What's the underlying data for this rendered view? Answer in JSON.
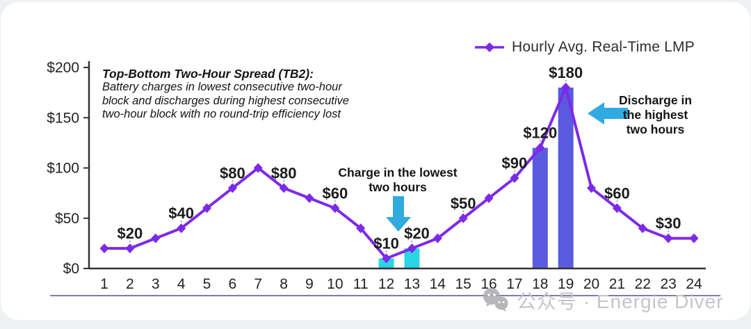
{
  "legend": {
    "label": "Hourly Avg. Real-Time LMP"
  },
  "annotation": {
    "title": "Top-Bottom Two-Hour Spread (TB2):",
    "lines": [
      "Battery charges in lowest consecutive two-hour",
      "block and discharges during highest consecutive",
      "two-hour block with no round-trip efficiency lost"
    ]
  },
  "callouts": {
    "charge": {
      "lines": [
        "Charge in the lowest",
        "two hours"
      ]
    },
    "discharge": {
      "lines": [
        "Discharge in",
        "the highest",
        "two hours"
      ]
    }
  },
  "watermark": {
    "icon": "wechat-icon",
    "text": "公众号 · Energie Diver"
  },
  "colors": {
    "line": "#7d2ae8",
    "charge_bar": "#2bd6e4",
    "discharge_bar": "#5a5adf",
    "arrow": "#30aae0",
    "axis": "#333333",
    "leader": "#8d8d8d"
  },
  "chart_data": {
    "type": "line",
    "title": "",
    "xlabel": "",
    "ylabel": "",
    "grid": false,
    "legend_position": "top-right",
    "series_name": "Hourly Avg. Real-Time LMP",
    "x": [
      1,
      2,
      3,
      4,
      5,
      6,
      7,
      8,
      9,
      10,
      11,
      12,
      13,
      14,
      15,
      16,
      17,
      18,
      19,
      20,
      21,
      22,
      23,
      24
    ],
    "values": [
      20,
      20,
      30,
      40,
      60,
      80,
      100,
      80,
      70,
      60,
      40,
      10,
      20,
      30,
      50,
      70,
      90,
      120,
      180,
      80,
      60,
      40,
      30,
      30
    ],
    "ylim": [
      0,
      200
    ],
    "yticks": [
      {
        "value": 0,
        "label": "$0"
      },
      {
        "value": 50,
        "label": "$50"
      },
      {
        "value": 100,
        "label": "$100"
      },
      {
        "value": 150,
        "label": "$150"
      },
      {
        "value": 200,
        "label": "$200"
      }
    ],
    "point_labels": [
      {
        "hour": 2,
        "label": "$20"
      },
      {
        "hour": 4,
        "label": "$40"
      },
      {
        "hour": 6,
        "label": "$80"
      },
      {
        "hour": 8,
        "label": "$80"
      },
      {
        "hour": 10,
        "label": "$60"
      },
      {
        "hour": 12,
        "label": "$10"
      },
      {
        "hour": 13,
        "label": "$20",
        "dx": 7
      },
      {
        "hour": 15,
        "label": "$50"
      },
      {
        "hour": 17,
        "label": "$90"
      },
      {
        "hour": 18,
        "label": "$120"
      },
      {
        "hour": 19,
        "label": "$180"
      },
      {
        "hour": 21,
        "label": "$60"
      },
      {
        "hour": 23,
        "label": "$30"
      }
    ],
    "bars": [
      {
        "hour": 12,
        "value": 10,
        "role": "charge"
      },
      {
        "hour": 13,
        "value": 20,
        "role": "charge"
      },
      {
        "hour": 18,
        "value": 120,
        "role": "discharge"
      },
      {
        "hour": 19,
        "value": 180,
        "role": "discharge"
      }
    ]
  }
}
